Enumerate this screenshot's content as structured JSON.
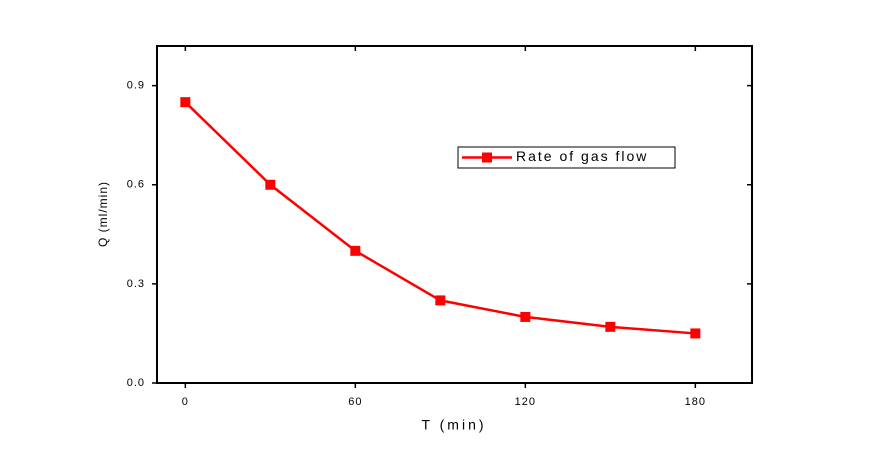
{
  "chart_data": {
    "type": "line",
    "x_label": "T (min)",
    "y_label": "Q (ml/min)",
    "x": [
      0,
      30,
      60,
      90,
      120,
      150,
      180
    ],
    "series": [
      {
        "name": "Rate of gas flow",
        "color": "#ff0000",
        "values": [
          0.85,
          0.6,
          0.4,
          0.25,
          0.2,
          0.17,
          0.15
        ]
      }
    ],
    "xlim": [
      -10,
      200
    ],
    "ylim": [
      0,
      1.02
    ],
    "xticks": [
      0,
      60,
      120,
      180
    ],
    "yticks": [
      {
        "value": 0,
        "label": "0.0"
      },
      0.3,
      0.6,
      0.9
    ],
    "legend": "upper-right",
    "grid": false
  }
}
